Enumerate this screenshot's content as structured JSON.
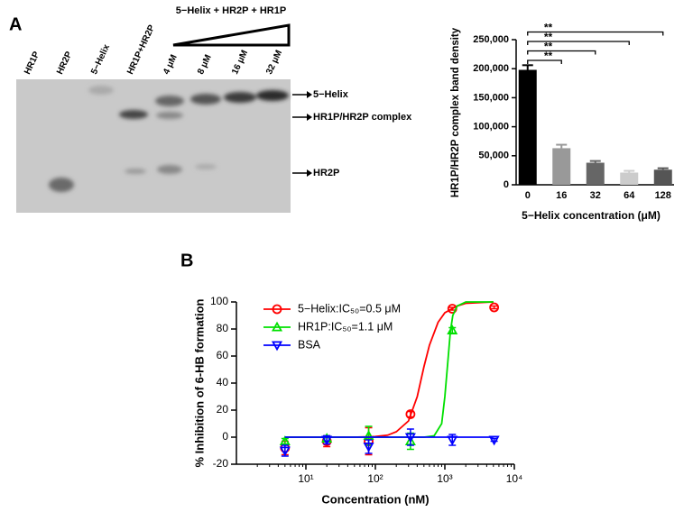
{
  "figure": {
    "panel_labels": [
      "A",
      "B"
    ]
  },
  "gel": {
    "header": "5−Helix + HR2P + HR1P",
    "lanes": [
      "HR1P",
      "HR2P",
      "5−Helix",
      "HR1P+HR2P",
      "4 μM",
      "8 μM",
      "16 μM",
      "32 μM"
    ],
    "bands": [
      "5−Helix",
      "HR1P/HR2P complex",
      "HR2P"
    ]
  },
  "chart_data": [
    {
      "type": "bar",
      "categories": [
        "0",
        "16",
        "32",
        "64",
        "128"
      ],
      "values": [
        198000,
        63000,
        38000,
        21000,
        26000
      ],
      "errors": [
        8000,
        6000,
        3000,
        3000,
        2500
      ],
      "colors": [
        "#000000",
        "#999999",
        "#666666",
        "#cccccc",
        "#555555"
      ],
      "ylim": [
        0,
        250000
      ],
      "yticks": [
        0,
        {
          "value": 50000,
          "label": "50,000"
        },
        {
          "value": 100000,
          "label": "100,000"
        },
        {
          "value": 150000,
          "label": "150,000"
        },
        {
          "value": 200000,
          "label": "200,000"
        },
        {
          "value": 250000,
          "label": "250,000"
        }
      ],
      "xlabel": "5−Helix concentration (μM)",
      "ylabel": "HR1P/HR2P complex band density",
      "annotations": [
        "**",
        "**",
        "**",
        "**"
      ]
    },
    {
      "type": "line",
      "xscale": "log",
      "xlim": [
        1,
        10000
      ],
      "xticks": [
        {
          "value": 10,
          "label": "10¹"
        },
        {
          "value": 100,
          "label": "10²"
        },
        {
          "value": 1000,
          "label": "10³"
        },
        {
          "value": 10000,
          "label": "10⁴"
        }
      ],
      "ylim": [
        -20,
        100
      ],
      "yticks": [
        -20,
        0,
        20,
        40,
        60,
        80,
        100
      ],
      "xlabel": "Concentration (nM)",
      "ylabel": "% Inhibition of 6-HB formation",
      "legend": "upper left",
      "series": [
        {
          "name": "5−Helix:IC₅₀=0.5 μM",
          "color": "#ff0000",
          "marker": "circle",
          "x": [
            5,
            20,
            80,
            320,
            1280,
            5120
          ],
          "values": [
            -8,
            -3,
            -3,
            17,
            95,
            96
          ],
          "errors": [
            5,
            4,
            10,
            2,
            1,
            1
          ],
          "fit_x": [
            5,
            50,
            100,
            150,
            200,
            300,
            400,
            500,
            600,
            800,
            1000,
            1500,
            2000,
            5000
          ],
          "fit_values": [
            0,
            0,
            0.5,
            1.5,
            4,
            12,
            30,
            52,
            68,
            85,
            92,
            97,
            99,
            100
          ]
        },
        {
          "name": "HR1P:IC₅₀=1.1 μM",
          "color": "#00e000",
          "marker": "triangle-up",
          "x": [
            5,
            20,
            80,
            320,
            1280
          ],
          "values": [
            -3,
            -1,
            1,
            -3,
            79
          ],
          "errors": [
            2,
            2,
            7,
            6,
            2
          ],
          "fit_x": [
            5,
            500,
            700,
            900,
            1000,
            1100,
            1200,
            1300,
            1500,
            2000,
            5000
          ],
          "fit_values": [
            0,
            0,
            1,
            10,
            30,
            55,
            78,
            90,
            97,
            100,
            100
          ]
        },
        {
          "name": "BSA",
          "color": "#0000ff",
          "marker": "triangle-down",
          "x": [
            5,
            20,
            80,
            320,
            1280,
            5120
          ],
          "values": [
            -10,
            -2,
            -7,
            0,
            -2,
            -2
          ],
          "errors": [
            4,
            3,
            5,
            6,
            4,
            1
          ],
          "fit_x": [
            5,
            5000
          ],
          "fit_values": [
            0,
            0
          ]
        }
      ]
    }
  ]
}
